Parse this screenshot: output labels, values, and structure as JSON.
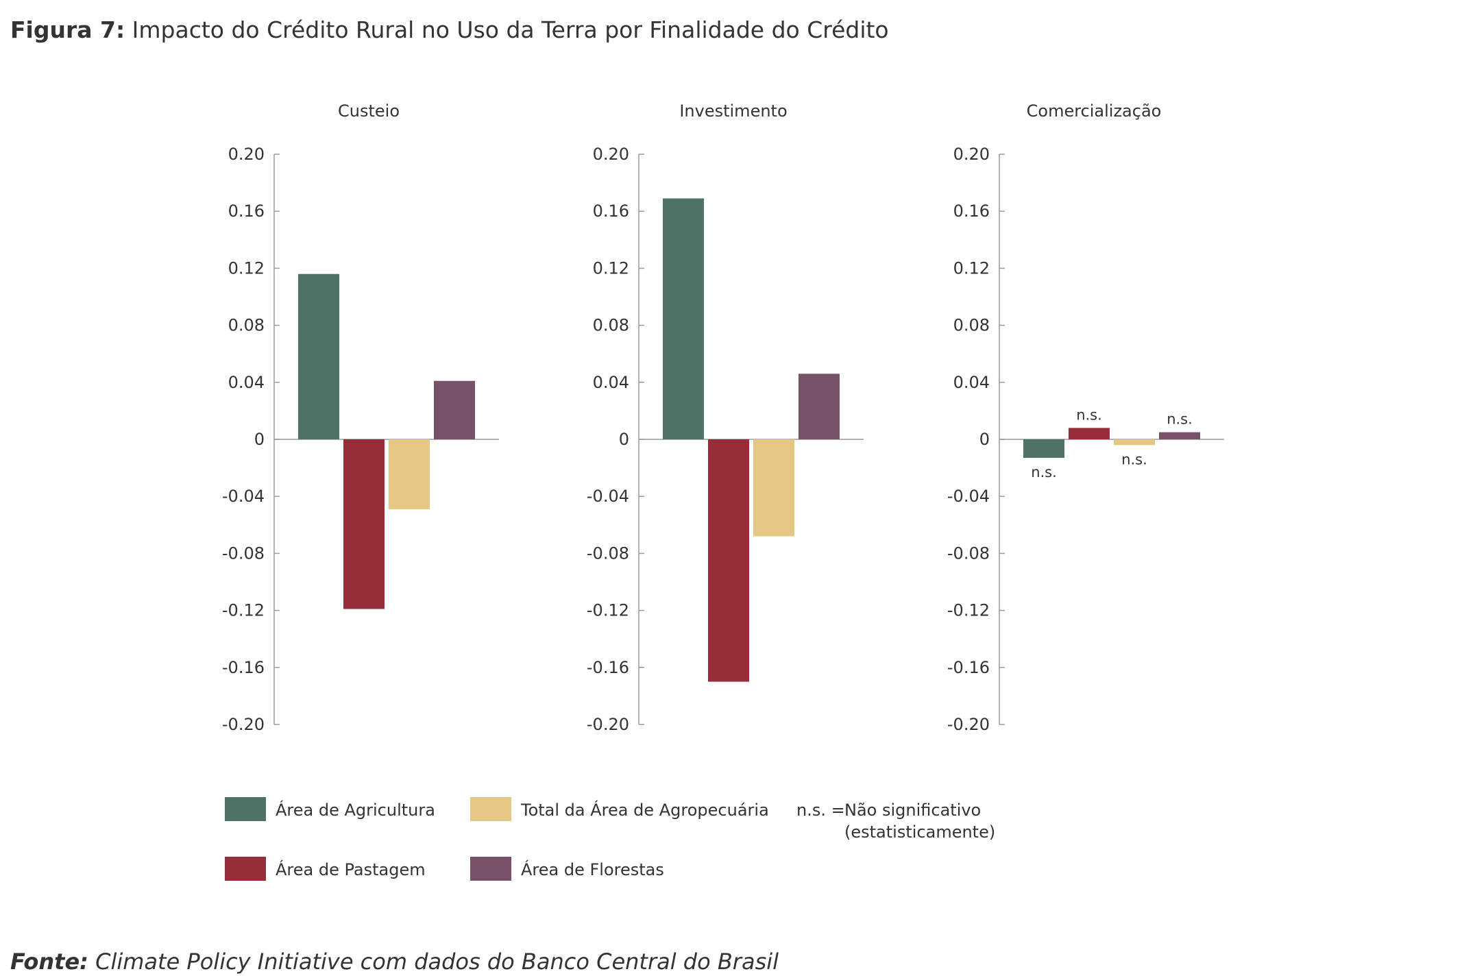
{
  "title": {
    "label": "Figura 7:",
    "text": "Impacto do Crédito Rural no Uso da Terra por Finalidade do Crédito"
  },
  "source": {
    "label": "Fonte:",
    "text": "Climate Policy Initiative com dados do Banco Central do Brasil"
  },
  "note": {
    "key": "n.s. =",
    "line1": "Não significativo",
    "line2": "(estatisticamente)"
  },
  "colors": {
    "Área de Agricultura": "#4e7168",
    "Área de Pastagem": "#972d38",
    "Total da Área de Agropecuária": "#e3c783",
    "Área de Florestas": "#795169"
  },
  "chart_data": {
    "type": "bar",
    "y_tick_labels": [
      "0.20",
      "0.16",
      "0.12",
      "0.08",
      "0.04",
      "0",
      "-0.04",
      "-0.08",
      "-0.12",
      "-0.16",
      "-0.20"
    ],
    "ylim": [
      -0.2,
      0.2
    ],
    "grid": false,
    "legend_placement": "bottom",
    "series_names": [
      "Área de Agricultura",
      "Área de Pastagem",
      "Total da Área de Agropecuária",
      "Área de Florestas"
    ],
    "legend_order": [
      "Área de Agricultura",
      "Total da Área de Agropecuária",
      "Área de Pastagem",
      "Área de Florestas"
    ],
    "panels": [
      {
        "title": "Custeio",
        "values": [
          0.116,
          -0.119,
          -0.049,
          0.041
        ],
        "annotations": [
          "",
          "",
          "",
          ""
        ]
      },
      {
        "title": "Investimento",
        "values": [
          0.169,
          -0.17,
          -0.068,
          0.046
        ],
        "annotations": [
          "",
          "",
          "",
          ""
        ]
      },
      {
        "title": "Comercialização",
        "values": [
          -0.013,
          0.008,
          -0.004,
          0.005
        ],
        "annotations": [
          "n.s.",
          "n.s.",
          "n.s.",
          "n.s."
        ]
      }
    ]
  }
}
